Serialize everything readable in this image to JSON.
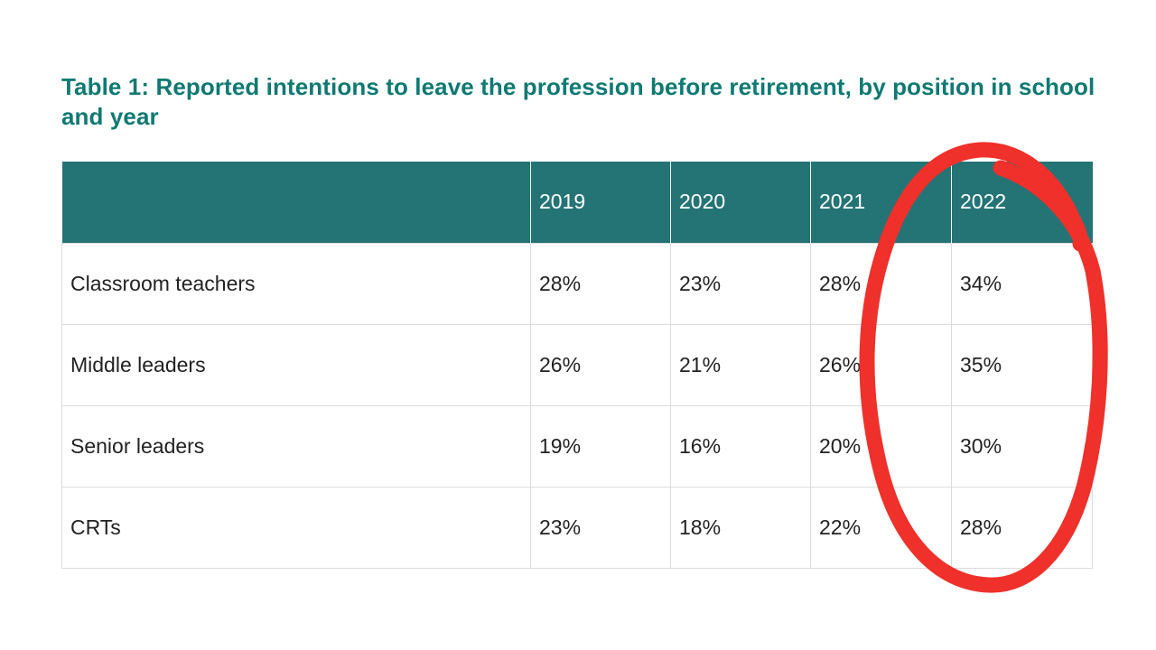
{
  "title": "Table 1: Reported intentions to leave the profession before retirement, by position in school and year",
  "table": {
    "header": [
      "",
      "2019",
      "2020",
      "2021",
      "2022"
    ],
    "rows": [
      [
        "Classroom teachers",
        "28%",
        "23%",
        "28%",
        "34%"
      ],
      [
        "Middle leaders",
        "26%",
        "21%",
        "26%",
        "35%"
      ],
      [
        "Senior leaders",
        "19%",
        "16%",
        "20%",
        "30%"
      ],
      [
        "CRTs",
        "23%",
        "18%",
        "22%",
        "28%"
      ]
    ]
  },
  "annotation": {
    "shape": "hand-drawn ellipse around 2022 column",
    "color": "#f0302a"
  }
}
